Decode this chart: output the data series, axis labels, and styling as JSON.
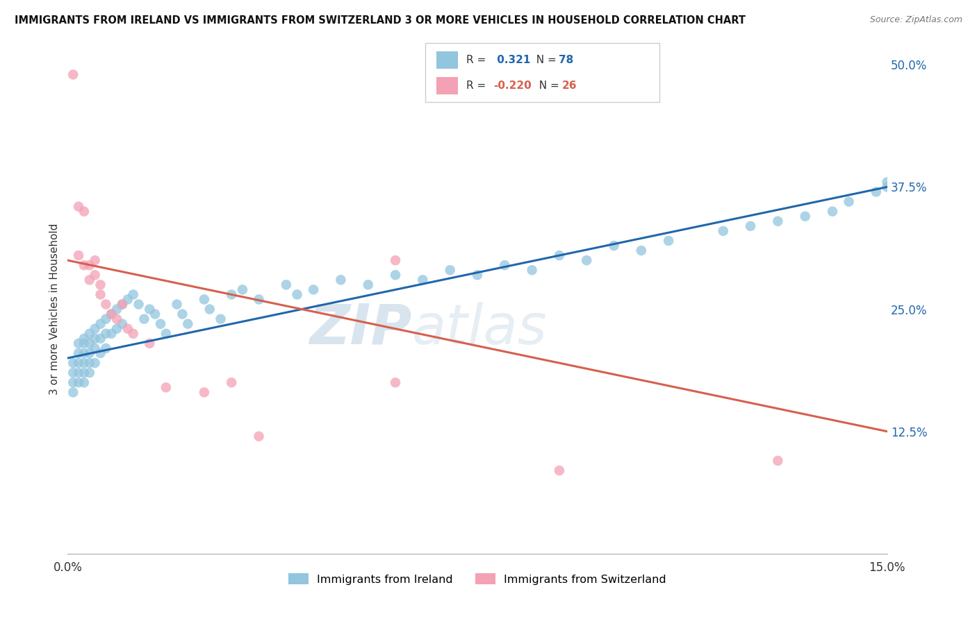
{
  "title": "IMMIGRANTS FROM IRELAND VS IMMIGRANTS FROM SWITZERLAND 3 OR MORE VEHICLES IN HOUSEHOLD CORRELATION CHART",
  "source": "Source: ZipAtlas.com",
  "ylabel_label": "3 or more Vehicles in Household",
  "legend_label1": "Immigrants from Ireland",
  "legend_label2": "Immigrants from Switzerland",
  "r1": "0.321",
  "n1": "78",
  "r2": "-0.220",
  "n2": "26",
  "color1": "#92c5de",
  "color2": "#f4a0b5",
  "line_color1": "#2166ac",
  "line_color2": "#d6604d",
  "watermark_zip": "ZIP",
  "watermark_atlas": "atlas",
  "xmin": 0.0,
  "xmax": 0.15,
  "ymin": 0.0,
  "ymax": 0.5,
  "ytick_vals": [
    0.125,
    0.25,
    0.375,
    0.5
  ],
  "ytick_labels": [
    "12.5%",
    "25.0%",
    "37.5%",
    "50.0%"
  ],
  "xtick_vals": [
    0.0,
    0.025,
    0.05,
    0.075,
    0.1,
    0.125,
    0.15
  ],
  "ireland_x": [
    0.001,
    0.001,
    0.001,
    0.001,
    0.002,
    0.002,
    0.002,
    0.002,
    0.002,
    0.003,
    0.003,
    0.003,
    0.003,
    0.003,
    0.003,
    0.004,
    0.004,
    0.004,
    0.004,
    0.004,
    0.005,
    0.005,
    0.005,
    0.005,
    0.006,
    0.006,
    0.006,
    0.007,
    0.007,
    0.007,
    0.008,
    0.008,
    0.009,
    0.009,
    0.01,
    0.01,
    0.011,
    0.012,
    0.013,
    0.014,
    0.015,
    0.016,
    0.017,
    0.018,
    0.02,
    0.021,
    0.022,
    0.025,
    0.026,
    0.028,
    0.03,
    0.032,
    0.035,
    0.04,
    0.042,
    0.045,
    0.05,
    0.055,
    0.06,
    0.065,
    0.07,
    0.075,
    0.08,
    0.085,
    0.09,
    0.095,
    0.1,
    0.105,
    0.11,
    0.12,
    0.125,
    0.13,
    0.135,
    0.14,
    0.143,
    0.148,
    0.15,
    0.15
  ],
  "ireland_y": [
    0.195,
    0.185,
    0.175,
    0.165,
    0.215,
    0.205,
    0.195,
    0.185,
    0.175,
    0.22,
    0.215,
    0.205,
    0.195,
    0.185,
    0.175,
    0.225,
    0.215,
    0.205,
    0.195,
    0.185,
    0.23,
    0.22,
    0.21,
    0.195,
    0.235,
    0.22,
    0.205,
    0.24,
    0.225,
    0.21,
    0.245,
    0.225,
    0.25,
    0.23,
    0.255,
    0.235,
    0.26,
    0.265,
    0.255,
    0.24,
    0.25,
    0.245,
    0.235,
    0.225,
    0.255,
    0.245,
    0.235,
    0.26,
    0.25,
    0.24,
    0.265,
    0.27,
    0.26,
    0.275,
    0.265,
    0.27,
    0.28,
    0.275,
    0.285,
    0.28,
    0.29,
    0.285,
    0.295,
    0.29,
    0.305,
    0.3,
    0.315,
    0.31,
    0.32,
    0.33,
    0.335,
    0.34,
    0.345,
    0.35,
    0.36,
    0.37,
    0.375,
    0.38
  ],
  "swiss_x": [
    0.001,
    0.002,
    0.002,
    0.003,
    0.003,
    0.004,
    0.004,
    0.005,
    0.005,
    0.006,
    0.006,
    0.007,
    0.008,
    0.009,
    0.01,
    0.011,
    0.012,
    0.015,
    0.018,
    0.025,
    0.03,
    0.035,
    0.06,
    0.06,
    0.09,
    0.13
  ],
  "swiss_y": [
    0.49,
    0.355,
    0.305,
    0.35,
    0.295,
    0.295,
    0.28,
    0.3,
    0.285,
    0.275,
    0.265,
    0.255,
    0.245,
    0.24,
    0.255,
    0.23,
    0.225,
    0.215,
    0.17,
    0.165,
    0.175,
    0.12,
    0.175,
    0.3,
    0.085,
    0.095
  ]
}
